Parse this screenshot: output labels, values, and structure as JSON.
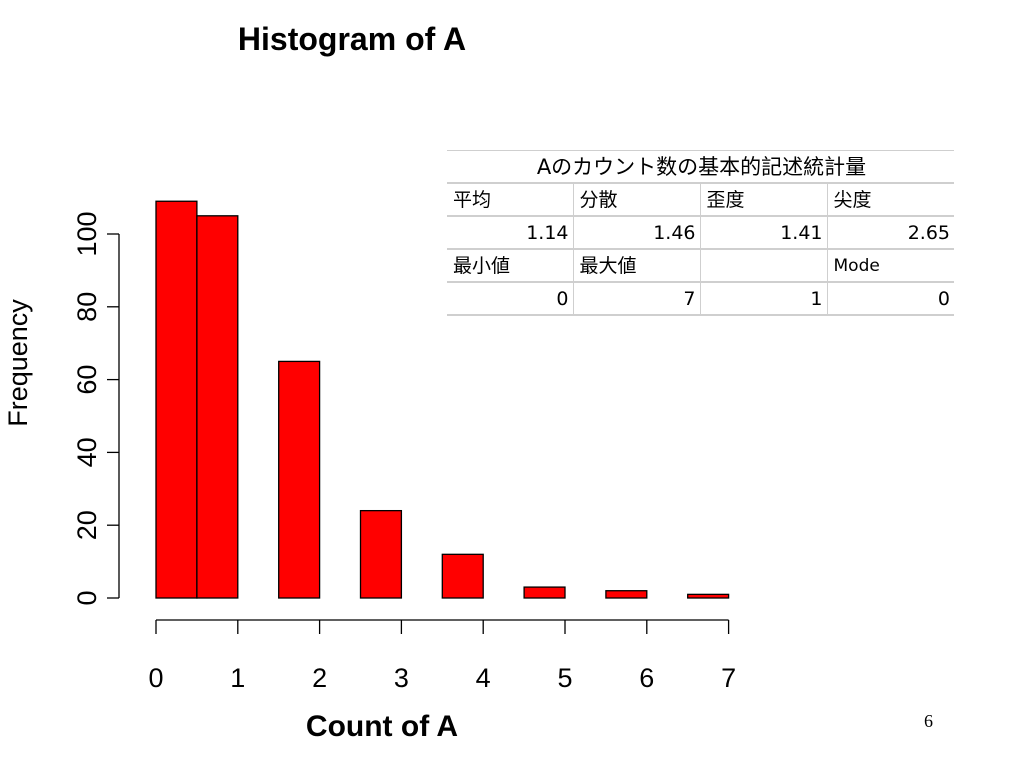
{
  "chart_data": {
    "type": "bar",
    "title": "Histogram of  A",
    "xlabel": "Count of A",
    "ylabel": "Frequency",
    "x_ticks": [
      "0",
      "1",
      "2",
      "3",
      "4",
      "5",
      "6",
      "7"
    ],
    "y_ticks": [
      "0",
      "20",
      "40",
      "60",
      "80",
      "100"
    ],
    "ylim": [
      0,
      120
    ],
    "bars": [
      {
        "x_start": 0.0,
        "x_end": 0.5,
        "value": 109
      },
      {
        "x_start": 0.5,
        "x_end": 1.0,
        "value": 105
      },
      {
        "x_start": 1.5,
        "x_end": 2.0,
        "value": 65
      },
      {
        "x_start": 2.5,
        "x_end": 3.0,
        "value": 24
      },
      {
        "x_start": 3.5,
        "x_end": 4.0,
        "value": 12
      },
      {
        "x_start": 4.5,
        "x_end": 5.0,
        "value": 3
      },
      {
        "x_start": 5.5,
        "x_end": 6.0,
        "value": 2
      },
      {
        "x_start": 6.5,
        "x_end": 7.0,
        "value": 1
      }
    ],
    "bar_color": "#ff0000",
    "bar_border_color": "#000000"
  },
  "stats_table": {
    "caption": "Aのカウント数の基本的記述統計量",
    "row1_labels": [
      "平均",
      "分散",
      "歪度",
      "尖度"
    ],
    "row1_values": [
      "1.14",
      "1.46",
      "1.41",
      "2.65"
    ],
    "row2_labels": [
      "最小値",
      "最大値",
      "",
      "Mode"
    ],
    "row2_values": [
      "0",
      "7",
      "1",
      "0"
    ]
  },
  "page_number": "6"
}
